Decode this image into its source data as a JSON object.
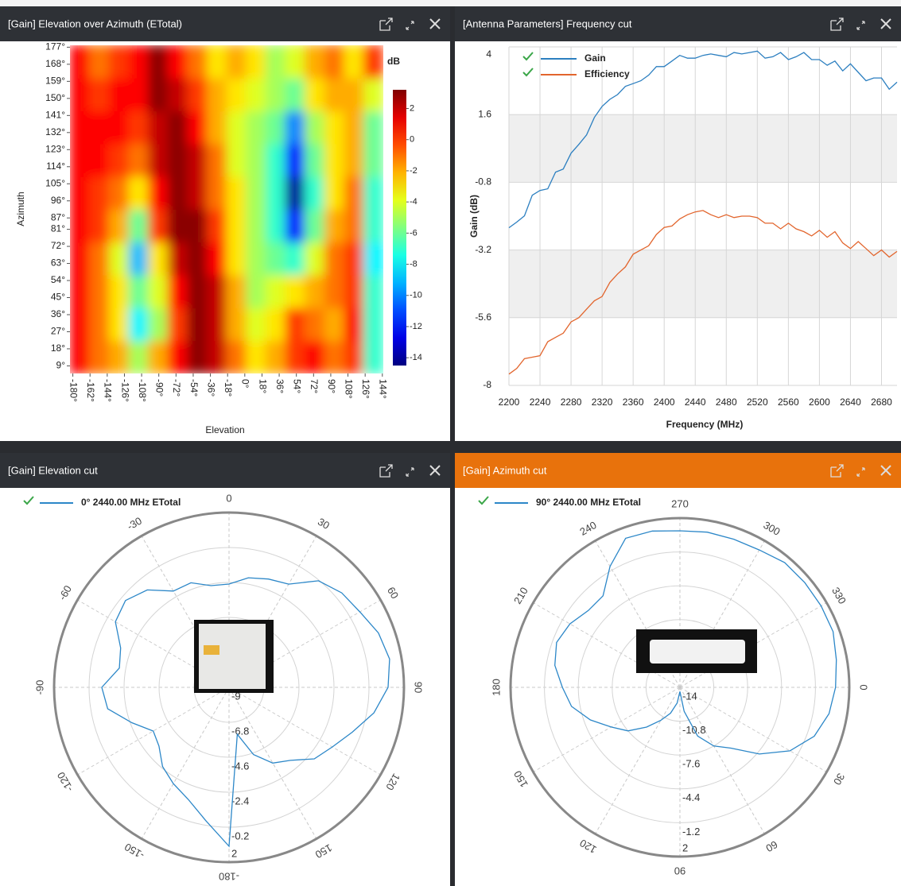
{
  "chart_data": [
    {
      "type": "heatmap",
      "title": "[Gain] Elevation over Azimuth (ETotal)",
      "xlabel": "Elevation",
      "ylabel": "Azimuth",
      "colorbar_label": "dB",
      "colormap": "jet",
      "xlim": [
        -183,
        145
      ],
      "ylim": [
        5,
        178
      ],
      "xticks": [
        {
          "value": -180,
          "label": "-180°"
        },
        {
          "value": -162,
          "label": "-162°"
        },
        {
          "value": -144,
          "label": "-144°"
        },
        {
          "value": -126,
          "label": "-126°"
        },
        {
          "value": -108,
          "label": "-108°"
        },
        {
          "value": -90,
          "label": "-90°"
        },
        {
          "value": -72,
          "label": "-72°"
        },
        {
          "value": -54,
          "label": "-54°"
        },
        {
          "value": -36,
          "label": "-36°"
        },
        {
          "value": -18,
          "label": "-18°"
        },
        {
          "value": 0,
          "label": "0°"
        },
        {
          "value": 18,
          "label": "18°"
        },
        {
          "value": 36,
          "label": "36°"
        },
        {
          "value": 54,
          "label": "54°"
        },
        {
          "value": 72,
          "label": "72°"
        },
        {
          "value": 90,
          "label": "90°"
        },
        {
          "value": 108,
          "label": "108°"
        },
        {
          "value": 126,
          "label": "126°"
        },
        {
          "value": 144,
          "label": "144°"
        }
      ],
      "yticks": [
        {
          "value": 9,
          "label": "9°"
        },
        {
          "value": 18,
          "label": "18°"
        },
        {
          "value": 27,
          "label": "27°"
        },
        {
          "value": 36,
          "label": "36°"
        },
        {
          "value": 45,
          "label": "45°"
        },
        {
          "value": 54,
          "label": "54°"
        },
        {
          "value": 63,
          "label": "63°"
        },
        {
          "value": 72,
          "label": "72°"
        },
        {
          "value": 81,
          "label": "81°"
        },
        {
          "value": 87,
          "label": "87°"
        },
        {
          "value": 96,
          "label": "96°"
        },
        {
          "value": 105,
          "label": "105°"
        },
        {
          "value": 114,
          "label": "114°"
        },
        {
          "value": 123,
          "label": "123°"
        },
        {
          "value": 132,
          "label": "132°"
        },
        {
          "value": 141,
          "label": "141°"
        },
        {
          "value": 150,
          "label": "150°"
        },
        {
          "value": 159,
          "label": "159°"
        },
        {
          "value": 168,
          "label": "168°"
        },
        {
          "value": 177,
          "label": "177°"
        }
      ],
      "zlim": [
        -14.5,
        3.2
      ],
      "zticks": [
        2,
        0,
        -2,
        -4,
        -6,
        -8,
        -10,
        -12,
        -14
      ],
      "z": [
        [
          1,
          -1,
          -2,
          -5,
          -2,
          1,
          3,
          2,
          -1,
          -3,
          -2,
          0,
          1,
          -1,
          0,
          -7
        ],
        [
          1,
          -1,
          -3,
          -8,
          -5,
          0,
          3,
          2,
          -2,
          -4,
          -3,
          0,
          -1,
          -2,
          1,
          -7
        ],
        [
          1,
          -1,
          -3,
          -6,
          -4,
          1,
          3,
          2,
          -2,
          -5,
          -4,
          -3,
          -2,
          -1,
          0,
          -7
        ],
        [
          1,
          -1,
          -4,
          -9,
          -3,
          2,
          3,
          1,
          -3,
          -5,
          -6,
          -7,
          -4,
          -1,
          0,
          -8
        ],
        [
          1,
          0,
          -2,
          -6,
          0,
          3,
          3,
          0,
          -3,
          -5,
          -7,
          -12,
          -6,
          -2,
          -1,
          -7
        ],
        [
          1,
          0,
          -1,
          -3,
          1,
          3,
          2,
          -1,
          -3,
          -5,
          -7,
          -14,
          -7,
          -3,
          -1,
          -7
        ],
        [
          1,
          1,
          0,
          -1,
          2,
          3,
          2,
          -1,
          -4,
          -5,
          -7,
          -12,
          -6,
          -3,
          -2,
          -6
        ],
        [
          1,
          1,
          1,
          0,
          2,
          3,
          1,
          -2,
          -4,
          -5,
          -6,
          -10,
          -5,
          -3,
          -2,
          -6
        ],
        [
          1,
          0,
          1,
          1,
          3,
          2,
          0,
          -2,
          -3,
          -4,
          -5,
          -6,
          -3,
          -2,
          -2,
          -4
        ],
        [
          1,
          -1,
          0,
          1,
          3,
          1,
          -1,
          -3,
          -2,
          -3,
          -5,
          -4,
          -2,
          -1,
          -3,
          0
        ]
      ]
    },
    {
      "type": "line",
      "title": "[Antenna Parameters] Frequency cut",
      "xlabel": "Frequency (MHz)",
      "ylabel": "Gain (dB)",
      "xlim": [
        2200,
        2700
      ],
      "ylim": [
        -8,
        4
      ],
      "xticks": [
        2200,
        2240,
        2280,
        2320,
        2360,
        2400,
        2440,
        2480,
        2520,
        2560,
        2600,
        2640,
        2680
      ],
      "yticks": [
        4,
        1.6,
        -0.8,
        -3.2,
        -5.6,
        -8
      ],
      "grid": true,
      "x": [
        2200,
        2210,
        2220,
        2230,
        2240,
        2250,
        2260,
        2270,
        2280,
        2290,
        2300,
        2310,
        2320,
        2330,
        2340,
        2350,
        2360,
        2370,
        2380,
        2390,
        2400,
        2410,
        2420,
        2430,
        2440,
        2450,
        2460,
        2470,
        2480,
        2490,
        2500,
        2510,
        2520,
        2530,
        2540,
        2550,
        2560,
        2570,
        2580,
        2590,
        2600,
        2610,
        2620,
        2630,
        2640,
        2650,
        2660,
        2670,
        2680,
        2690,
        2700
      ],
      "series": [
        {
          "name": "Gain",
          "color": "#2c7fc0",
          "values": [
            -2.41,
            -2.21,
            -1.99,
            -1.26,
            -1.09,
            -1.03,
            -0.44,
            -0.33,
            0.23,
            0.54,
            0.88,
            1.5,
            1.89,
            2.14,
            2.31,
            2.6,
            2.7,
            2.8,
            3.0,
            3.3,
            3.3,
            3.5,
            3.7,
            3.6,
            3.6,
            3.7,
            3.75,
            3.7,
            3.65,
            3.8,
            3.75,
            3.8,
            3.85,
            3.6,
            3.65,
            3.8,
            3.55,
            3.65,
            3.8,
            3.55,
            3.55,
            3.35,
            3.5,
            3.15,
            3.4,
            3.1,
            2.8,
            2.9,
            2.9,
            2.5,
            2.75
          ]
        },
        {
          "name": "Efficiency",
          "color": "#e2652d",
          "values": [
            -7.6,
            -7.4,
            -7.05,
            -7.0,
            -6.95,
            -6.45,
            -6.3,
            -6.15,
            -5.75,
            -5.6,
            -5.3,
            -5.0,
            -4.85,
            -4.35,
            -4.05,
            -3.8,
            -3.35,
            -3.2,
            -3.05,
            -2.65,
            -2.4,
            -2.35,
            -2.1,
            -1.95,
            -1.85,
            -1.8,
            -1.95,
            -2.05,
            -1.95,
            -2.05,
            -2.0,
            -2.0,
            -2.05,
            -2.25,
            -2.25,
            -2.45,
            -2.25,
            -2.45,
            -2.55,
            -2.7,
            -2.5,
            -2.75,
            -2.55,
            -2.95,
            -3.15,
            -2.9,
            -3.15,
            -3.4,
            -3.2,
            -3.45,
            -3.25
          ]
        }
      ]
    },
    {
      "type": "polar",
      "title": "[Gain] Elevation cut",
      "rlim": [
        -9,
        2
      ],
      "rticks": [
        -9,
        -6.8,
        -4.6,
        -2.4,
        -0.2,
        2
      ],
      "thetaticks": [
        0,
        30,
        60,
        90,
        120,
        150,
        -180,
        -150,
        -120,
        -90,
        -60,
        -30
      ],
      "theta": [
        -180,
        -170,
        -160,
        -150,
        -140,
        -130,
        -120,
        -110,
        -100,
        -90,
        -80,
        -70,
        -60,
        -50,
        -40,
        -30,
        -20,
        -10,
        0,
        10,
        20,
        30,
        40,
        50,
        60,
        70,
        80,
        90,
        100,
        110,
        120,
        130,
        140,
        150,
        160,
        170
      ],
      "series": [
        {
          "name": "0° 2440.00 MHz ETotal",
          "color": "#2c87c8",
          "r": [
            1.0,
            -0.5,
            -1.5,
            -2.0,
            -2.5,
            -3.25,
            -3.5,
            -2.5,
            -1.25,
            -1.0,
            -2.0,
            -1.75,
            -0.75,
            -0.5,
            -1.0,
            -2.0,
            -2.0,
            -2.5,
            -2.5,
            -2.0,
            -1.75,
            -1.5,
            -0.25,
            0.25,
            0.5,
            1.0,
            1.25,
            1.0,
            0.25,
            -0.75,
            -1.5,
            -2.0,
            -3.0,
            -3.5,
            -4.5,
            -6.0
          ]
        }
      ]
    },
    {
      "type": "polar",
      "title": "[Gain] Azimuth cut",
      "rlim": [
        -14,
        2
      ],
      "rticks": [
        -14,
        -10.8,
        -7.6,
        -4.4,
        -1.2,
        2
      ],
      "thetaticks": [
        270,
        300,
        330,
        0,
        30,
        60,
        90,
        120,
        150,
        180,
        210,
        240
      ],
      "theta": [
        0,
        10,
        20,
        30,
        40,
        50,
        60,
        70,
        80,
        90,
        100,
        110,
        120,
        130,
        140,
        150,
        160,
        170,
        180,
        190,
        200,
        210,
        220,
        230,
        240,
        250,
        260,
        270,
        280,
        290,
        300,
        310,
        320,
        330,
        340,
        350
      ],
      "series": [
        {
          "name": "90° 2440.00 MHz ETotal",
          "color": "#2c87c8",
          "r": [
            0.7,
            0.3,
            -0.5,
            -2.0,
            -4.2,
            -6.5,
            -7.6,
            -9.1,
            -11.7,
            -13.6,
            -12.5,
            -11.4,
            -10.4,
            -9.1,
            -7.6,
            -6.5,
            -5.0,
            -3.6,
            -2.9,
            -2.0,
            -1.6,
            -2.0,
            -2.7,
            -2.7,
            -0.8,
            1.0,
            1.0,
            0.8,
            0.9,
            0.9,
            1.0,
            1.4,
            1.4,
            1.4,
            1.4,
            1.0
          ]
        }
      ]
    }
  ]
}
